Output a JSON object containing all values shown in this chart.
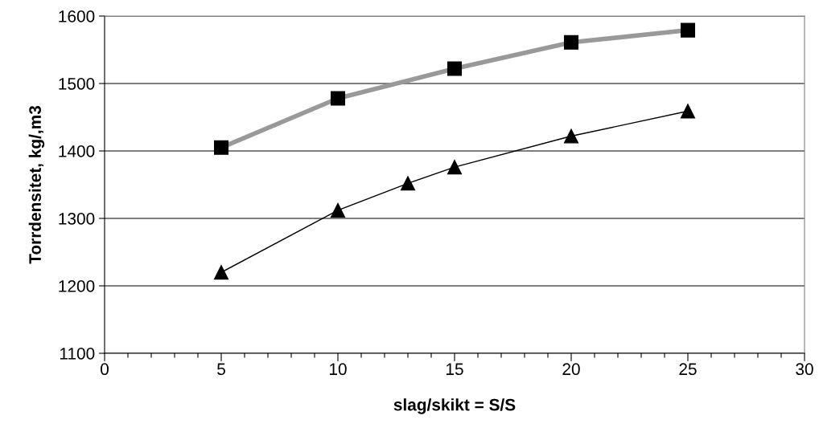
{
  "chart_data": {
    "type": "line",
    "xlabel": "slag/skikt = S/S",
    "ylabel": "Torrdensitet, kg/,m3",
    "xlim": [
      0,
      30
    ],
    "ylim": [
      1100,
      1600
    ],
    "xticks": [
      0,
      {
        "value": 1,
        "label": null
      },
      {
        "value": 2,
        "label": null
      },
      {
        "value": 3,
        "label": null
      },
      {
        "value": 4,
        "label": null
      },
      5,
      {
        "value": 6,
        "label": null
      },
      {
        "value": 7,
        "label": null
      },
      {
        "value": 8,
        "label": null
      },
      {
        "value": 9,
        "label": null
      },
      10,
      {
        "value": 11,
        "label": null
      },
      {
        "value": 12,
        "label": null
      },
      {
        "value": 13,
        "label": null
      },
      {
        "value": 14,
        "label": null
      },
      15,
      {
        "value": 16,
        "label": null
      },
      {
        "value": 17,
        "label": null
      },
      {
        "value": 18,
        "label": null
      },
      {
        "value": 19,
        "label": null
      },
      20,
      {
        "value": 21,
        "label": null
      },
      {
        "value": 22,
        "label": null
      },
      {
        "value": 23,
        "label": null
      },
      {
        "value": 24,
        "label": null
      },
      25,
      {
        "value": 26,
        "label": null
      },
      {
        "value": 27,
        "label": null
      },
      {
        "value": 28,
        "label": null
      },
      {
        "value": 29,
        "label": null
      },
      30
    ],
    "yticks": [
      1100,
      1200,
      1300,
      1400,
      1500,
      1600
    ],
    "grid": "y",
    "series": [
      {
        "color": "#999999",
        "marker": "square",
        "x": [
          5,
          10,
          15,
          20,
          25
        ],
        "values": [
          1405,
          1478,
          1522,
          1561,
          1579
        ]
      },
      {
        "color": "#000000",
        "marker": "triangle",
        "x": [
          5,
          10,
          13,
          15,
          20,
          25
        ],
        "values": [
          1220,
          1312,
          1352,
          1376,
          1422,
          1459
        ]
      }
    ]
  }
}
